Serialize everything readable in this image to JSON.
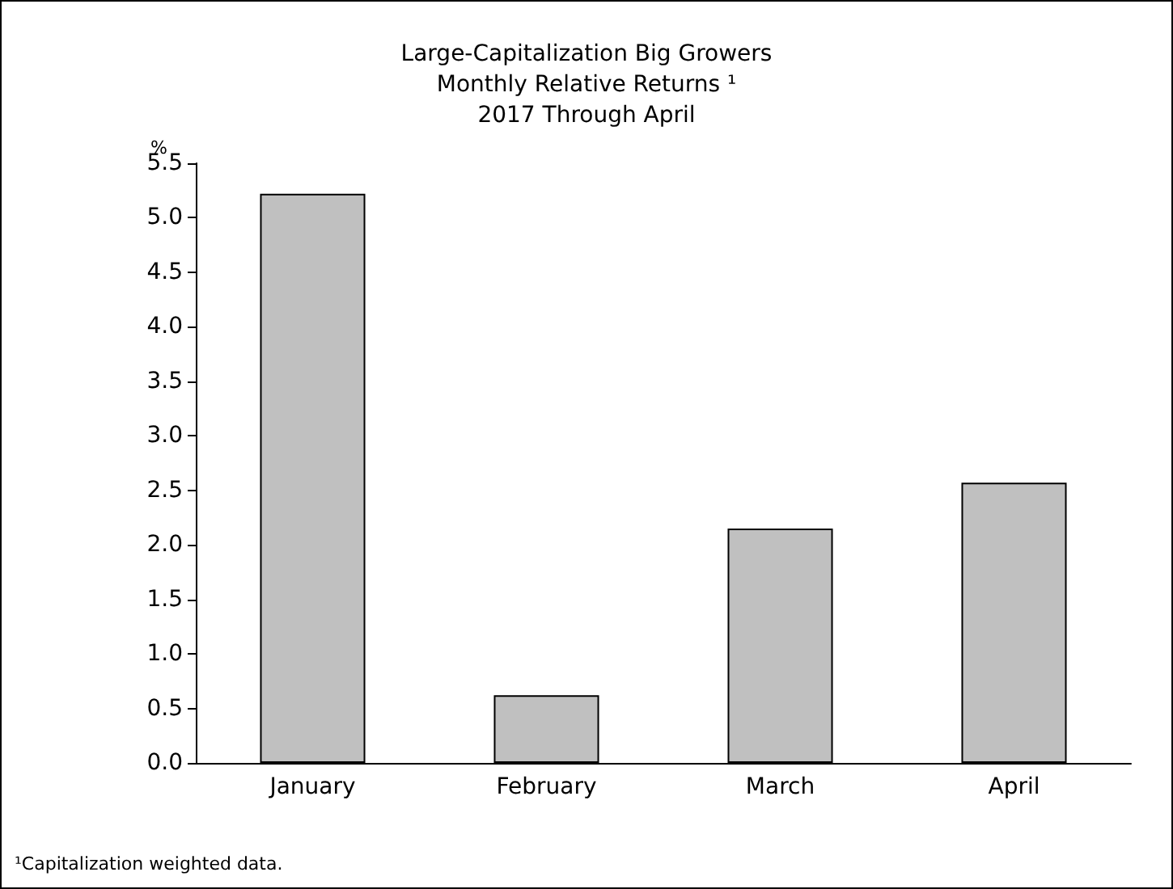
{
  "chart_data": {
    "type": "bar",
    "title": "Large-Capitalization Big Growers\nMonthly Relative Returns ¹\n2017 Through April",
    "ylabel": "%",
    "categories": [
      "January",
      "February",
      "March",
      "April"
    ],
    "values": [
      5.22,
      0.62,
      2.15,
      2.57
    ],
    "color": "#c0c0c0",
    "ylim": [
      0,
      5.5
    ],
    "yticks": [
      {
        "value": 0,
        "label": "0.0"
      },
      0.5,
      {
        "value": 1,
        "label": "1.0"
      },
      1.5,
      {
        "value": 2,
        "label": "2.0"
      },
      2.5,
      {
        "value": 3,
        "label": "3.0"
      },
      3.5,
      {
        "value": 4,
        "label": "4.0"
      },
      4.5,
      {
        "value": 5,
        "label": "5.0"
      },
      5.5
    ],
    "grid": false,
    "annotations": [
      "¹Capitalization weighted data."
    ]
  }
}
